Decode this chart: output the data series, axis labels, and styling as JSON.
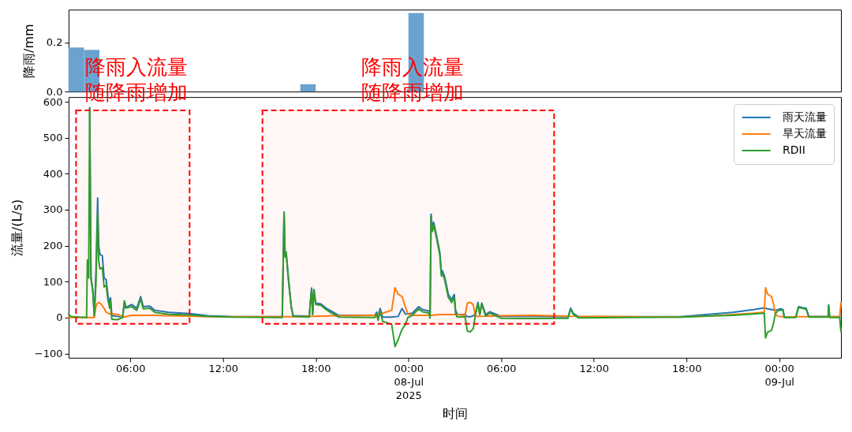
{
  "chart_data": [
    {
      "type": "bar",
      "ylabel": "降雨/mm",
      "x": [
        "2025-07-07T02:30",
        "2025-07-07T03:30",
        "2025-07-07T17:30",
        "2025-07-08T00:30"
      ],
      "values": [
        0.18,
        0.17,
        0.03,
        0.32
      ],
      "color": "#6aa3d0",
      "xlim": [
        "2025-07-07T02:00",
        "2025-07-09T04:00"
      ],
      "ylim": [
        0,
        0.334
      ],
      "yticks": [
        {
          "value": 0,
          "label": "0.0"
        },
        0.2
      ],
      "tick_labels": "y"
    },
    {
      "type": "line",
      "xlabel": "时间",
      "ylabel": "流量/(L/s)",
      "x": [
        "2025-07-07T02:00",
        "2025-07-07T02:08",
        "2025-07-07T02:40",
        "2025-07-07T03:10",
        "2025-07-07T03:13",
        "2025-07-07T03:18",
        "2025-07-07T03:22",
        "2025-07-07T03:27",
        "2025-07-07T03:34",
        "2025-07-07T03:40",
        "2025-07-07T03:46",
        "2025-07-07T03:53",
        "2025-07-07T03:57",
        "2025-07-07T04:02",
        "2025-07-07T04:11",
        "2025-07-07T04:18",
        "2025-07-07T04:26",
        "2025-07-07T04:33",
        "2025-07-07T04:40",
        "2025-07-07T04:43",
        "2025-07-07T04:48",
        "2025-07-07T05:10",
        "2025-07-07T05:30",
        "2025-07-07T05:37",
        "2025-07-07T05:42",
        "2025-07-07T06:05",
        "2025-07-07T06:25",
        "2025-07-07T06:40",
        "2025-07-07T06:50",
        "2025-07-07T07:15",
        "2025-07-07T07:35",
        "2025-07-07T08:30",
        "2025-07-07T09:50",
        "2025-07-07T11:00",
        "2025-07-07T12:30",
        "2025-07-07T15:50",
        "2025-07-07T15:57",
        "2025-07-07T16:01",
        "2025-07-07T16:05",
        "2025-07-07T16:15",
        "2025-07-07T16:25",
        "2025-07-07T16:32",
        "2025-07-07T17:35",
        "2025-07-07T17:40",
        "2025-07-07T17:44",
        "2025-07-07T17:48",
        "2025-07-07T17:53",
        "2025-07-07T18:00",
        "2025-07-07T18:20",
        "2025-07-07T18:40",
        "2025-07-07T19:00",
        "2025-07-07T19:30",
        "2025-07-07T21:50",
        "2025-07-07T21:57",
        "2025-07-07T22:02",
        "2025-07-07T22:10",
        "2025-07-07T22:20",
        "2025-07-07T22:55",
        "2025-07-07T23:08",
        "2025-07-07T23:20",
        "2025-07-07T23:35",
        "2025-07-07T23:48",
        "2025-07-07T23:58",
        "2025-07-08T00:15",
        "2025-07-08T00:40",
        "2025-07-08T00:55",
        "2025-07-08T01:20",
        "2025-07-08T01:24",
        "2025-07-08T01:28",
        "2025-07-08T01:33",
        "2025-07-08T01:38",
        "2025-07-08T01:50",
        "2025-07-08T02:02",
        "2025-07-08T02:08",
        "2025-07-08T02:12",
        "2025-07-08T02:20",
        "2025-07-08T02:35",
        "2025-07-08T02:48",
        "2025-07-08T02:58",
        "2025-07-08T03:03",
        "2025-07-08T03:10",
        "2025-07-08T03:40",
        "2025-07-08T03:49",
        "2025-07-08T04:00",
        "2025-07-08T04:12",
        "2025-07-08T04:20",
        "2025-07-08T04:30",
        "2025-07-08T04:37",
        "2025-07-08T04:45",
        "2025-07-08T05:00",
        "2025-07-08T05:16",
        "2025-07-08T06:00",
        "2025-07-08T08:00",
        "2025-07-08T10:20",
        "2025-07-08T10:30",
        "2025-07-08T10:40",
        "2025-07-08T11:00",
        "2025-07-08T17:36",
        "2025-07-08T19:17",
        "2025-07-08T20:59",
        "2025-07-08T22:21",
        "2025-07-08T23:02",
        "2025-07-08T23:07",
        "2025-07-08T23:15",
        "2025-07-08T23:30",
        "2025-07-08T23:38",
        "2025-07-08T23:45",
        "2025-07-08T23:55",
        "2025-07-09T00:05",
        "2025-07-09T00:15",
        "2025-07-09T00:20",
        "2025-07-09T01:05",
        "2025-07-09T01:15",
        "2025-07-09T01:45",
        "2025-07-09T01:55",
        "2025-07-09T03:10",
        "2025-07-09T03:12",
        "2025-07-09T03:16",
        "2025-07-09T03:55",
        "2025-07-09T04:00"
      ],
      "series": [
        {
          "name": "雨天流量",
          "color": "#1f77b4",
          "values": [
            null,
            null,
            null,
            null,
            null,
            null,
            583,
            110,
            75,
            5,
            120,
            332,
            200,
            175,
            172,
            110,
            105,
            60,
            35,
            55,
            5,
            3,
            2,
            46,
            28,
            36,
            26,
            58,
            30,
            32,
            20,
            14,
            11,
            5,
            3,
            2,
            293,
            170,
            182,
            100,
            30,
            5,
            4,
            50,
            82,
            10,
            78,
            40,
            38,
            26,
            18,
            6,
            6,
            15,
            0,
            25,
            1,
            1,
            2,
            3,
            25,
            10,
            10,
            12,
            30,
            22,
            18,
            4,
            287,
            245,
            265,
            225,
            181,
            123,
            130,
            115,
            64,
            50,
            64,
            20,
            9,
            8,
            2,
            2,
            5,
            10,
            42,
            10,
            40,
            8,
            16,
            3,
            3,
            2,
            26,
            12,
            2,
            2,
            8,
            14,
            22,
            27,
            26,
            24,
            22,
            22,
            20,
            22,
            24,
            22,
            1,
            2,
            30,
            25,
            3,
            3,
            35,
            2,
            2,
            2
          ]
        },
        {
          "name": "旱天流量",
          "color": "#ff7f0e",
          "values": [
            0,
            0,
            0,
            0,
            0,
            0,
            0,
            0,
            0,
            0,
            30,
            40,
            42,
            40,
            33,
            25,
            15,
            12,
            10,
            10,
            10,
            9,
            2,
            1,
            2,
            6,
            6,
            6,
            6,
            6,
            6,
            5,
            4,
            2,
            2,
            2,
            2,
            2,
            2,
            2,
            2,
            2,
            3,
            3,
            3,
            3,
            3,
            4,
            4,
            4,
            5,
            5,
            6,
            6,
            8,
            8,
            12,
            20,
            83,
            65,
            58,
            30,
            10,
            6,
            6,
            6,
            6,
            6,
            6,
            6,
            7,
            7,
            8,
            8,
            8,
            8,
            8,
            8,
            8,
            8,
            8,
            6,
            40,
            42,
            36,
            3,
            3,
            3,
            3,
            4,
            4,
            5,
            6,
            4,
            3,
            3,
            3,
            1,
            4,
            8,
            12,
            15,
            83,
            65,
            58,
            38,
            10,
            3,
            3,
            2,
            1,
            2,
            2,
            2,
            2,
            2,
            2,
            2,
            2,
            42
          ]
        },
        {
          "name": "RDII",
          "color": "#2ca02c",
          "values": [
            10,
            3,
            1,
            0,
            160,
            110,
            583,
            110,
            75,
            5,
            90,
            292,
            158,
            135,
            139,
            85,
            90,
            48,
            25,
            45,
            -5,
            -6,
            0,
            45,
            26,
            30,
            20,
            52,
            24,
            26,
            14,
            9,
            7,
            3,
            1,
            0,
            291,
            168,
            180,
            98,
            28,
            3,
            1,
            47,
            79,
            7,
            75,
            36,
            34,
            22,
            13,
            1,
            0,
            9,
            -8,
            17,
            -11,
            -19,
            -81,
            -62,
            -33,
            -20,
            0,
            6,
            24,
            16,
            12,
            -2,
            281,
            239,
            258,
            218,
            173,
            115,
            122,
            107,
            56,
            42,
            56,
            12,
            1,
            2,
            -38,
            -40,
            -31,
            7,
            39,
            7,
            37,
            4,
            12,
            -2,
            -3,
            -2,
            23,
            9,
            -1,
            1,
            4,
            6,
            10,
            12,
            -57,
            -41,
            -36,
            -16,
            10,
            19,
            21,
            20,
            0,
            0,
            28,
            23,
            1,
            1,
            33,
            0,
            0,
            -40
          ]
        }
      ],
      "xlim": [
        "2025-07-07T02:00",
        "2025-07-09T04:00"
      ],
      "xticks": [
        {
          "value": "2025-07-07T06:00",
          "label": "06:00"
        },
        {
          "value": "2025-07-07T12:00",
          "label": "12:00"
        },
        {
          "value": "2025-07-07T18:00",
          "label": "18:00"
        },
        {
          "value": "2025-07-08T00:00",
          "label": "00:00\n08-Jul\n2025"
        },
        {
          "value": "2025-07-08T06:00",
          "label": "06:00"
        },
        {
          "value": "2025-07-08T12:00",
          "label": "12:00"
        },
        {
          "value": "2025-07-08T18:00",
          "label": "18:00"
        },
        {
          "value": "2025-07-09T00:00",
          "label": "00:00\n09-Jul"
        }
      ],
      "ylim": [
        -112,
        613
      ],
      "yticks": [
        -100,
        0,
        100,
        200,
        300,
        400,
        500,
        600
      ],
      "legend": "top right",
      "bands": [
        {
          "axis": "x",
          "from": "2025-07-07T02:29",
          "to": "2025-07-07T09:50",
          "label": "降雨入流量随降雨增加",
          "color": "#ff0000"
        },
        {
          "axis": "x",
          "from": "2025-07-07T14:33",
          "to": "2025-07-08T09:26",
          "label": "降雨入流量随降雨增加",
          "color": "#ff0000"
        }
      ]
    }
  ]
}
